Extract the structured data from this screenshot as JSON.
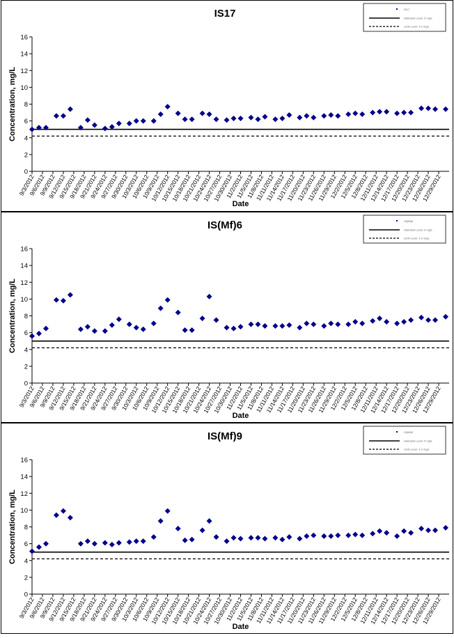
{
  "chart_data": [
    {
      "type": "scatter",
      "title": "IS17",
      "xlabel": "Date",
      "ylabel": "Concentration, mg/L",
      "ylim": [
        0,
        16
      ],
      "yticks": [
        0,
        2,
        4,
        6,
        8,
        10,
        12,
        14,
        16
      ],
      "grid": false,
      "legend_position": "top-right",
      "legend": [
        "IS17",
        "Standard Level: 5 mg/L",
        "Limit Level: 4.2 mg/L"
      ],
      "x_tick_labels": [
        "9/3/2012",
        "9/6/2012",
        "9/9/2012",
        "9/12/2012",
        "9/15/2012",
        "9/18/2012",
        "9/21/2012",
        "9/24/2012",
        "9/27/2012",
        "9/30/2012",
        "10/3/2012",
        "10/6/2012",
        "10/9/2012",
        "10/12/2012",
        "10/15/2012",
        "10/18/2012",
        "10/21/2012",
        "10/24/2012",
        "10/27/2012",
        "10/30/2012",
        "11/2/2012",
        "11/5/2012",
        "11/8/2012",
        "11/11/2012",
        "11/14/2012",
        "11/17/2012",
        "11/20/2012",
        "11/23/2012",
        "11/26/2012",
        "11/29/2012",
        "12/2/2012",
        "12/5/2012",
        "12/8/2012",
        "12/11/2012",
        "12/14/2012",
        "12/17/2012",
        "12/20/2012",
        "12/23/2012",
        "12/26/2012",
        "12/29/2012"
      ],
      "lines": [
        {
          "name": "Standard Level: 5 mg/L",
          "value": 5,
          "style": "solid"
        },
        {
          "name": "Limit Level: 4.2 mg/L",
          "value": 4.2,
          "style": "dashed"
        }
      ],
      "series": [
        {
          "name": "IS17",
          "x": [
            "9/3/2012",
            "9/5/2012",
            "9/7/2012",
            "9/10/2012",
            "9/12/2012",
            "9/14/2012",
            "9/17/2012",
            "9/19/2012",
            "9/21/2012",
            "9/24/2012",
            "9/26/2012",
            "9/28/2012",
            "10/1/2012",
            "10/3/2012",
            "10/5/2012",
            "10/8/2012",
            "10/10/2012",
            "10/12/2012",
            "10/15/2012",
            "10/17/2012",
            "10/19/2012",
            "10/22/2012",
            "10/24/2012",
            "10/26/2012",
            "10/29/2012",
            "10/31/2012",
            "11/2/2012",
            "11/5/2012",
            "11/7/2012",
            "11/9/2012",
            "11/12/2012",
            "11/14/2012",
            "11/16/2012",
            "11/19/2012",
            "11/21/2012",
            "11/23/2012",
            "11/26/2012",
            "11/28/2012",
            "11/30/2012",
            "12/3/2012",
            "12/5/2012",
            "12/7/2012",
            "12/10/2012",
            "12/12/2012",
            "12/14/2012",
            "12/17/2012",
            "12/19/2012",
            "12/21/2012",
            "12/24/2012",
            "12/26/2012",
            "12/28/2012",
            "12/31/2012"
          ],
          "values": [
            5.0,
            5.2,
            5.2,
            6.6,
            6.6,
            7.4,
            5.2,
            6.1,
            5.5,
            5.1,
            5.3,
            5.7,
            5.7,
            6.0,
            6.0,
            6.0,
            6.8,
            7.7,
            6.9,
            6.2,
            6.2,
            6.9,
            6.8,
            6.2,
            6.1,
            6.3,
            6.3,
            6.4,
            6.2,
            6.5,
            6.2,
            6.3,
            6.7,
            6.4,
            6.6,
            6.4,
            6.6,
            6.7,
            6.6,
            6.8,
            6.9,
            6.8,
            7.0,
            7.1,
            7.1,
            6.9,
            7.0,
            7.0,
            7.5,
            7.5,
            7.4,
            7.4
          ]
        }
      ]
    },
    {
      "type": "scatter",
      "title": "IS(Mf)6",
      "xlabel": "Date",
      "ylabel": "Concentration, mg/L",
      "ylim": [
        0,
        16
      ],
      "yticks": [
        0,
        2,
        4,
        6,
        8,
        10,
        12,
        14,
        16
      ],
      "grid": false,
      "legend_position": "top-right",
      "legend": [
        "IS(Mf)6",
        "Standard Level: 5 mg/L",
        "Limit Level: 4.2 mg/L"
      ],
      "x_tick_labels": [
        "9/3/2012",
        "9/6/2012",
        "9/9/2012",
        "9/12/2012",
        "9/15/2012",
        "9/18/2012",
        "9/21/2012",
        "9/24/2012",
        "9/27/2012",
        "9/30/2012",
        "10/3/2012",
        "10/6/2012",
        "10/9/2012",
        "10/12/2012",
        "10/15/2012",
        "10/18/2012",
        "10/21/2012",
        "10/24/2012",
        "10/27/2012",
        "10/30/2012",
        "11/2/2012",
        "11/5/2012",
        "11/8/2012",
        "11/11/2012",
        "11/14/2012",
        "11/17/2012",
        "11/20/2012",
        "11/23/2012",
        "11/26/2012",
        "11/29/2012",
        "12/2/2012",
        "12/5/2012",
        "12/8/2012",
        "12/11/2012",
        "12/14/2012",
        "12/17/2012",
        "12/20/2012",
        "12/23/2012",
        "12/26/2012",
        "12/29/2012"
      ],
      "lines": [
        {
          "name": "Standard Level: 5 mg/L",
          "value": 5,
          "style": "solid"
        },
        {
          "name": "Limit Level: 4.2 mg/L",
          "value": 4.2,
          "style": "dashed"
        }
      ],
      "series": [
        {
          "name": "IS(Mf)6",
          "x": [
            "9/3/2012",
            "9/5/2012",
            "9/7/2012",
            "9/10/2012",
            "9/12/2012",
            "9/14/2012",
            "9/17/2012",
            "9/19/2012",
            "9/21/2012",
            "9/24/2012",
            "9/26/2012",
            "9/28/2012",
            "10/1/2012",
            "10/3/2012",
            "10/5/2012",
            "10/8/2012",
            "10/10/2012",
            "10/12/2012",
            "10/15/2012",
            "10/17/2012",
            "10/19/2012",
            "10/22/2012",
            "10/24/2012",
            "10/26/2012",
            "10/29/2012",
            "10/31/2012",
            "11/2/2012",
            "11/5/2012",
            "11/7/2012",
            "11/9/2012",
            "11/12/2012",
            "11/14/2012",
            "11/16/2012",
            "11/19/2012",
            "11/21/2012",
            "11/23/2012",
            "11/26/2012",
            "11/28/2012",
            "11/30/2012",
            "12/3/2012",
            "12/5/2012",
            "12/7/2012",
            "12/10/2012",
            "12/12/2012",
            "12/14/2012",
            "12/17/2012",
            "12/19/2012",
            "12/21/2012",
            "12/24/2012",
            "12/26/2012",
            "12/28/2012",
            "12/31/2012"
          ],
          "values": [
            5.6,
            5.9,
            6.5,
            9.9,
            9.8,
            10.5,
            6.4,
            6.7,
            6.2,
            6.2,
            6.9,
            7.6,
            7.0,
            6.6,
            6.4,
            7.1,
            8.9,
            9.9,
            8.4,
            6.3,
            6.3,
            7.7,
            10.3,
            7.5,
            6.6,
            6.5,
            6.7,
            7.0,
            7.0,
            6.8,
            6.8,
            6.8,
            6.9,
            6.6,
            7.1,
            7.0,
            6.8,
            7.1,
            7.0,
            7.0,
            7.3,
            7.1,
            7.4,
            7.7,
            7.3,
            7.1,
            7.3,
            7.5,
            7.8,
            7.5,
            7.5,
            7.9
          ]
        }
      ]
    },
    {
      "type": "scatter",
      "title": "IS(Mf)9",
      "xlabel": "Date",
      "ylabel": "Concentration, mg/L",
      "ylim": [
        0,
        16
      ],
      "yticks": [
        0,
        2,
        4,
        6,
        8,
        10,
        12,
        14,
        16
      ],
      "grid": false,
      "legend_position": "top-right",
      "legend": [
        "IS(Mf)9",
        "Standard Level: 5 mg/L",
        "Limit Level: 4.2 mg/L"
      ],
      "x_tick_labels": [
        "9/3/2012",
        "9/6/2012",
        "9/9/2012",
        "9/12/2012",
        "9/15/2012",
        "9/18/2012",
        "9/21/2012",
        "9/24/2012",
        "9/27/2012",
        "9/30/2012",
        "10/3/2012",
        "10/6/2012",
        "10/9/2012",
        "10/12/2012",
        "10/15/2012",
        "10/18/2012",
        "10/21/2012",
        "10/24/2012",
        "10/27/2012",
        "10/30/2012",
        "11/2/2012",
        "11/5/2012",
        "11/8/2012",
        "11/11/2012",
        "11/14/2012",
        "11/17/2012",
        "11/20/2012",
        "11/23/2012",
        "11/26/2012",
        "11/29/2012",
        "12/2/2012",
        "12/5/2012",
        "12/8/2012",
        "12/11/2012",
        "12/14/2012",
        "12/17/2012",
        "12/20/2012",
        "12/23/2012",
        "12/26/2012",
        "12/29/2012"
      ],
      "lines": [
        {
          "name": "Standard Level: 5 mg/L",
          "value": 5,
          "style": "solid"
        },
        {
          "name": "Limit Level: 4.2 mg/L",
          "value": 4.2,
          "style": "dashed"
        }
      ],
      "series": [
        {
          "name": "IS(Mf)9",
          "x": [
            "9/3/2012",
            "9/5/2012",
            "9/7/2012",
            "9/10/2012",
            "9/12/2012",
            "9/14/2012",
            "9/17/2012",
            "9/19/2012",
            "9/21/2012",
            "9/24/2012",
            "9/26/2012",
            "9/28/2012",
            "10/1/2012",
            "10/3/2012",
            "10/5/2012",
            "10/8/2012",
            "10/10/2012",
            "10/12/2012",
            "10/15/2012",
            "10/17/2012",
            "10/19/2012",
            "10/22/2012",
            "10/24/2012",
            "10/26/2012",
            "10/29/2012",
            "10/31/2012",
            "11/2/2012",
            "11/5/2012",
            "11/7/2012",
            "11/9/2012",
            "11/12/2012",
            "11/14/2012",
            "11/16/2012",
            "11/19/2012",
            "11/21/2012",
            "11/23/2012",
            "11/26/2012",
            "11/28/2012",
            "11/30/2012",
            "12/3/2012",
            "12/5/2012",
            "12/7/2012",
            "12/10/2012",
            "12/12/2012",
            "12/14/2012",
            "12/17/2012",
            "12/19/2012",
            "12/21/2012",
            "12/24/2012",
            "12/26/2012",
            "12/28/2012",
            "12/31/2012"
          ],
          "values": [
            5.1,
            5.6,
            6.0,
            9.4,
            9.9,
            9.1,
            6.0,
            6.3,
            6.0,
            6.1,
            5.9,
            6.1,
            6.2,
            6.3,
            6.3,
            6.8,
            8.7,
            9.9,
            7.8,
            6.4,
            6.5,
            7.6,
            8.7,
            6.8,
            6.3,
            6.7,
            6.6,
            6.7,
            6.7,
            6.6,
            6.7,
            6.5,
            6.8,
            6.6,
            6.9,
            7.0,
            6.9,
            6.9,
            7.0,
            7.0,
            7.1,
            7.0,
            7.2,
            7.5,
            7.3,
            6.9,
            7.5,
            7.3,
            7.8,
            7.6,
            7.6,
            7.9
          ]
        }
      ]
    }
  ]
}
